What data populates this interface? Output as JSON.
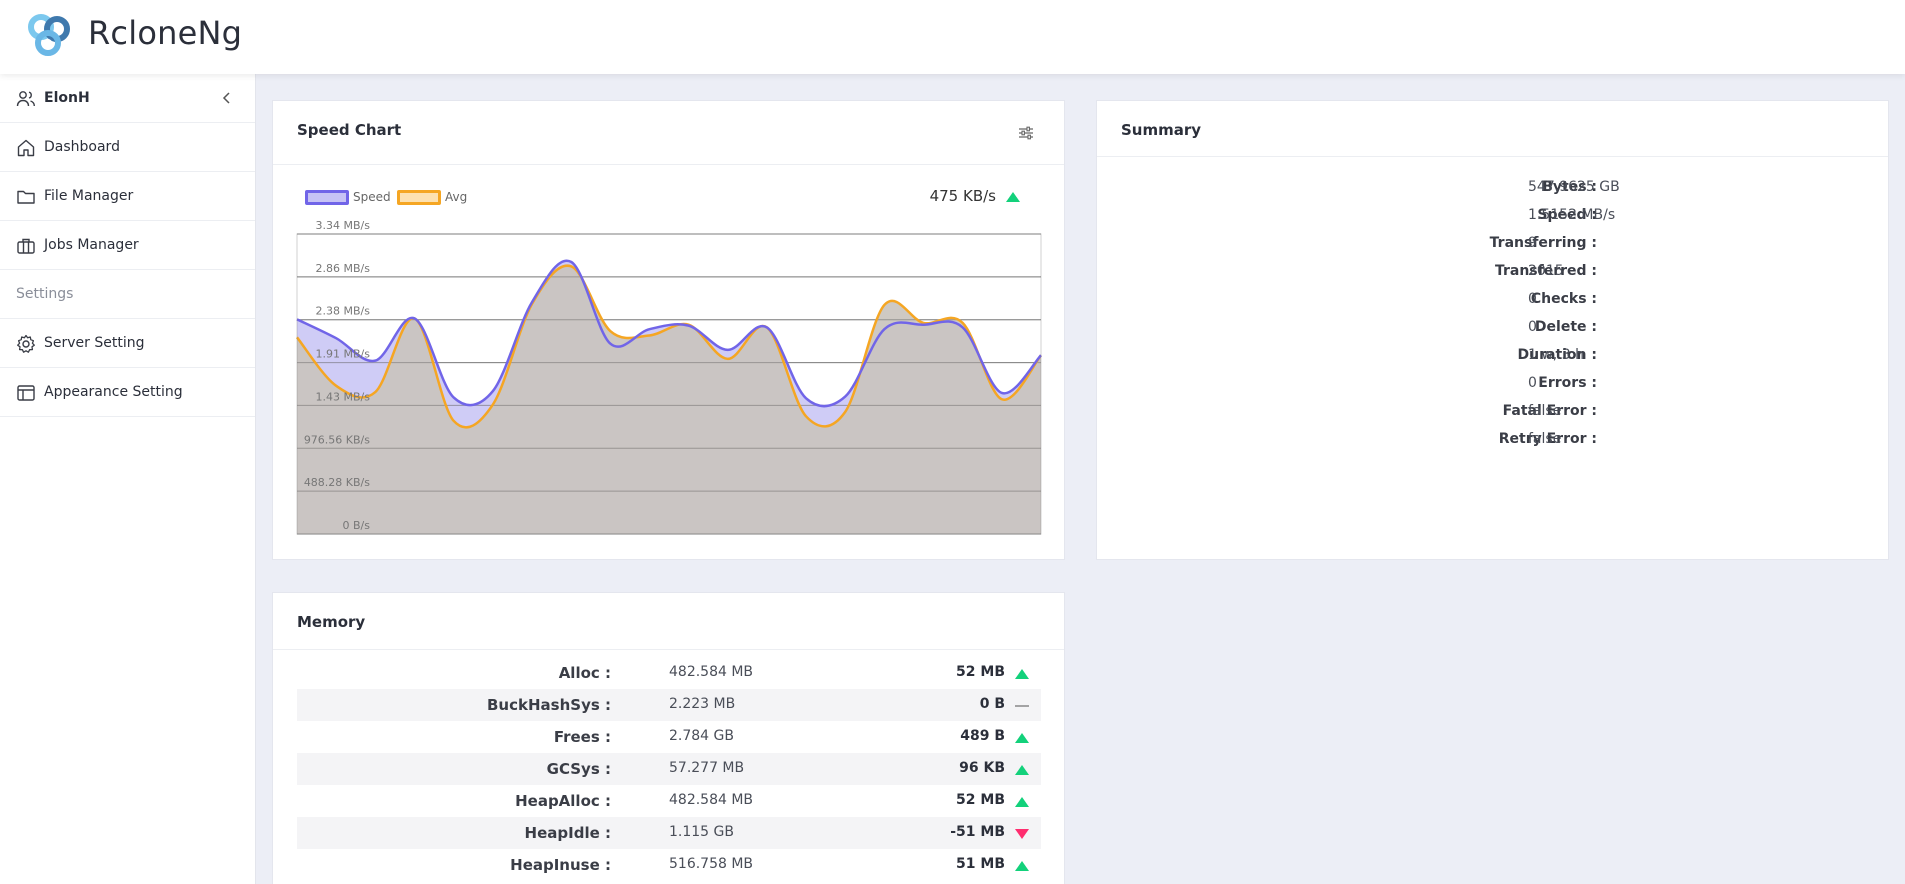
{
  "app": {
    "title": "RcloneNg"
  },
  "sidebar": {
    "user": "ElonH",
    "items": [
      {
        "label": "Dashboard",
        "icon": "home-icon"
      },
      {
        "label": "File Manager",
        "icon": "folder-icon"
      },
      {
        "label": "Jobs Manager",
        "icon": "briefcase-icon"
      }
    ],
    "section": "Settings",
    "settings": [
      {
        "label": "Server Setting",
        "icon": "gear-icon"
      },
      {
        "label": "Appearance Setting",
        "icon": "browser-icon"
      }
    ]
  },
  "speed_card": {
    "title": "Speed Chart",
    "legend_speed": "Speed",
    "legend_avg": "Avg",
    "current_speed": "475 KB/s",
    "colors": {
      "speed": "#7165e8",
      "avg": "#f5a623",
      "up": "#13d17b",
      "down": "#ff2d6f"
    }
  },
  "chart_data": {
    "type": "line",
    "title": "Speed Chart",
    "yticks": [
      "0 B/s",
      "488.28 KB/s",
      "976.56 KB/s",
      "1.43 MB/s",
      "1.91 MB/s",
      "2.38 MB/s",
      "2.86 MB/s",
      "3.34 MB/s"
    ],
    "ylim_mb": [
      0,
      3.34
    ],
    "series": [
      {
        "name": "Speed",
        "values": [
          2.39,
          2.18,
          1.93,
          2.4,
          1.52,
          1.59,
          2.58,
          3.03,
          2.12,
          2.28,
          2.32,
          2.05,
          2.3,
          1.51,
          1.53,
          2.28,
          2.33,
          2.3,
          1.57,
          1.99
        ]
      },
      {
        "name": "Avg",
        "values": [
          2.19,
          1.65,
          1.58,
          2.4,
          1.26,
          1.44,
          2.56,
          2.98,
          2.26,
          2.21,
          2.33,
          1.95,
          2.3,
          1.31,
          1.36,
          2.55,
          2.35,
          2.35,
          1.5,
          1.99
        ]
      }
    ]
  },
  "summary": {
    "title": "Summary",
    "rows": [
      {
        "label": "Bytes :",
        "value": "547.9625 GB"
      },
      {
        "label": "Speed :",
        "value": "1.5152 MB/s"
      },
      {
        "label": "Transferring :",
        "value": "9"
      },
      {
        "label": "Transferred :",
        "value": "2015"
      },
      {
        "label": "Checks :",
        "value": "0"
      },
      {
        "label": "Delete :",
        "value": "0"
      },
      {
        "label": "Duration :",
        "value": "1 w, 3 h"
      },
      {
        "label": "Errors :",
        "value": "0"
      },
      {
        "label": "Fatal Error :",
        "value": "false"
      },
      {
        "label": "Retry Error :",
        "value": "false"
      }
    ]
  },
  "memory": {
    "title": "Memory",
    "rows": [
      {
        "label": "Alloc :",
        "value": "482.584 MB",
        "delta": "52 MB",
        "trend": "up"
      },
      {
        "label": "BuckHashSys :",
        "value": "2.223 MB",
        "delta": "0 B",
        "trend": "flat"
      },
      {
        "label": "Frees :",
        "value": "2.784 GB",
        "delta": "489 B",
        "trend": "up"
      },
      {
        "label": "GCSys :",
        "value": "57.277 MB",
        "delta": "96 KB",
        "trend": "up"
      },
      {
        "label": "HeapAlloc :",
        "value": "482.584 MB",
        "delta": "52 MB",
        "trend": "up"
      },
      {
        "label": "HeapIdle :",
        "value": "1.115 GB",
        "delta": "-51 MB",
        "trend": "down"
      },
      {
        "label": "HeapInuse :",
        "value": "516.758 MB",
        "delta": "51 MB",
        "trend": "up"
      }
    ]
  }
}
